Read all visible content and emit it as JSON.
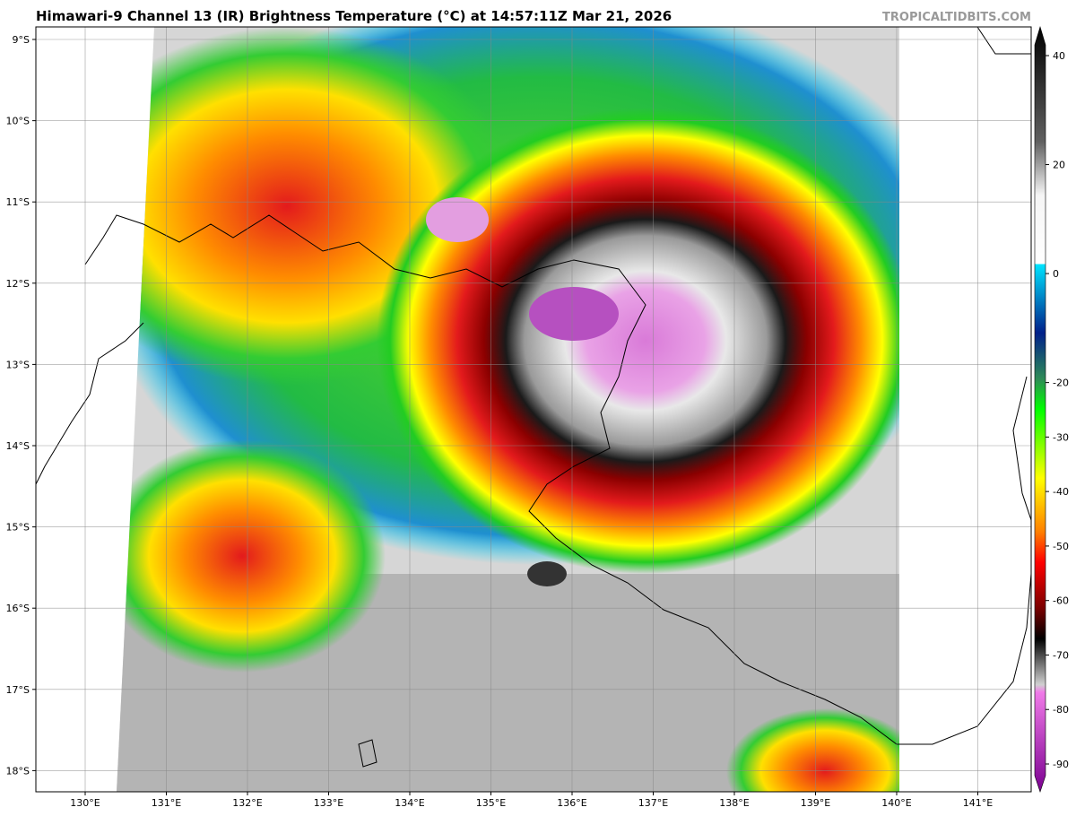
{
  "title": "Himawari-9 Channel 13 (IR) Brightness Temperature (°C) at 14:57:11Z Mar 21, 2026",
  "watermark": "TROPICALTIDBITS.COM",
  "lat_labels": [
    "9°S",
    "10°S",
    "11°S",
    "12°S",
    "13°S",
    "14°S",
    "15°S",
    "16°S",
    "17°S",
    "18°S"
  ],
  "lon_labels": [
    "130°E",
    "131°E",
    "132°E",
    "133°E",
    "134°E",
    "135°E",
    "136°E",
    "137°E",
    "138°E",
    "139°E",
    "140°E",
    "141°E"
  ],
  "colorbar_ticks": [
    40,
    20,
    0,
    -20,
    -30,
    -40,
    -50,
    -60,
    -70,
    -80,
    -90
  ]
}
